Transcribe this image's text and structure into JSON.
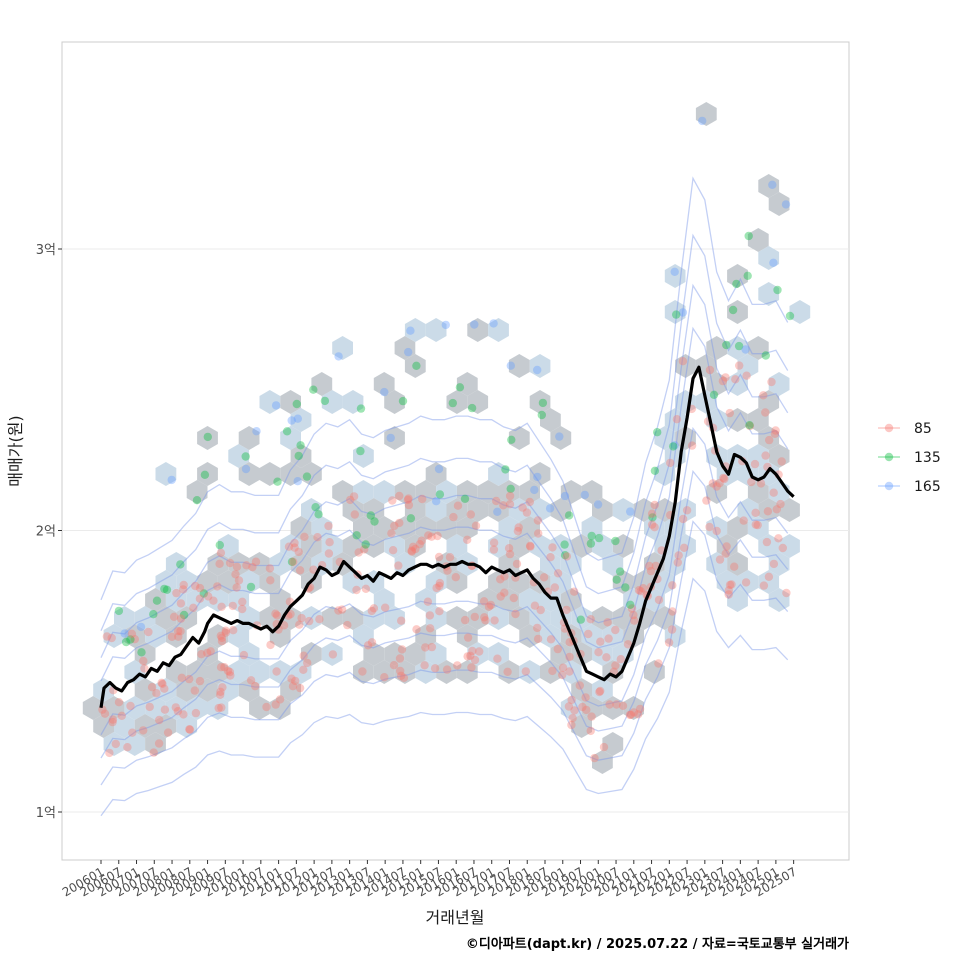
{
  "chart_data": {
    "type": "scatter",
    "xlabel": "거래년월",
    "ylabel": "매매가(원)",
    "caption": "©디아파트(dapt.kr) / 2025.07.22 / 자료=국토교통부 실거래가",
    "x_ticks": [
      "200601",
      "200607",
      "200701",
      "200707",
      "200801",
      "200807",
      "200901",
      "200907",
      "201001",
      "201007",
      "201101",
      "201107",
      "201201",
      "201207",
      "201301",
      "201307",
      "201401",
      "201407",
      "201501",
      "201507",
      "201601",
      "201607",
      "201701",
      "201707",
      "201801",
      "201807",
      "201901",
      "201907",
      "202001",
      "202007",
      "202101",
      "202107",
      "202201",
      "202207",
      "202301",
      "202307",
      "202401",
      "202407",
      "202501",
      "202507"
    ],
    "y_ticks": [
      {
        "value": 100000000,
        "label": "1억"
      },
      {
        "value": 200000000,
        "label": "2억"
      },
      {
        "value": 300000000,
        "label": "3억"
      }
    ],
    "ylim": [
      84000000,
      375000000
    ],
    "xlim": [
      "2005-08",
      "2027-01"
    ],
    "grid": true,
    "legend": {
      "position": "right",
      "items": [
        {
          "label": "85",
          "color": "#F8766D"
        },
        {
          "label": "135",
          "color": "#00BA38"
        },
        {
          "label": "165",
          "color": "#619CFF"
        }
      ]
    },
    "series": [
      {
        "name": "moving-average",
        "type": "line",
        "color": "#000000",
        "points": [
          [
            "2006-01",
            137000000
          ],
          [
            "2006-02",
            144000000
          ],
          [
            "2006-04",
            146000000
          ],
          [
            "2006-06",
            144000000
          ],
          [
            "2006-08",
            143000000
          ],
          [
            "2006-10",
            146000000
          ],
          [
            "2006-12",
            147000000
          ],
          [
            "2007-02",
            149000000
          ],
          [
            "2007-04",
            148000000
          ],
          [
            "2007-06",
            151000000
          ],
          [
            "2007-08",
            150000000
          ],
          [
            "2007-10",
            153000000
          ],
          [
            "2007-12",
            152000000
          ],
          [
            "2008-02",
            155000000
          ],
          [
            "2008-04",
            156000000
          ],
          [
            "2008-06",
            159000000
          ],
          [
            "2008-08",
            162000000
          ],
          [
            "2008-10",
            160000000
          ],
          [
            "2008-12",
            164000000
          ],
          [
            "2009-01",
            167000000
          ],
          [
            "2009-03",
            170000000
          ],
          [
            "2009-05",
            169000000
          ],
          [
            "2009-07",
            168000000
          ],
          [
            "2009-09",
            167000000
          ],
          [
            "2009-11",
            168000000
          ],
          [
            "2010-01",
            167000000
          ],
          [
            "2010-03",
            167000000
          ],
          [
            "2010-05",
            166000000
          ],
          [
            "2010-07",
            165000000
          ],
          [
            "2010-09",
            166000000
          ],
          [
            "2010-11",
            164000000
          ],
          [
            "2011-01",
            166000000
          ],
          [
            "2011-03",
            170000000
          ],
          [
            "2011-05",
            173000000
          ],
          [
            "2011-07",
            175000000
          ],
          [
            "2011-09",
            177000000
          ],
          [
            "2011-11",
            181000000
          ],
          [
            "2012-01",
            183000000
          ],
          [
            "2012-03",
            187000000
          ],
          [
            "2012-05",
            186000000
          ],
          [
            "2012-07",
            184000000
          ],
          [
            "2012-09",
            185000000
          ],
          [
            "2012-11",
            189000000
          ],
          [
            "2013-01",
            187000000
          ],
          [
            "2013-03",
            185000000
          ],
          [
            "2013-05",
            183000000
          ],
          [
            "2013-07",
            184000000
          ],
          [
            "2013-09",
            182000000
          ],
          [
            "2013-11",
            185000000
          ],
          [
            "2014-01",
            184000000
          ],
          [
            "2014-03",
            183000000
          ],
          [
            "2014-05",
            185000000
          ],
          [
            "2014-07",
            184000000
          ],
          [
            "2014-09",
            186000000
          ],
          [
            "2014-11",
            187000000
          ],
          [
            "2015-01",
            188000000
          ],
          [
            "2015-03",
            188000000
          ],
          [
            "2015-05",
            187000000
          ],
          [
            "2015-07",
            188000000
          ],
          [
            "2015-09",
            187000000
          ],
          [
            "2015-11",
            188000000
          ],
          [
            "2016-01",
            188000000
          ],
          [
            "2016-03",
            189000000
          ],
          [
            "2016-05",
            188000000
          ],
          [
            "2016-07",
            188000000
          ],
          [
            "2016-09",
            187000000
          ],
          [
            "2016-11",
            185000000
          ],
          [
            "2017-01",
            187000000
          ],
          [
            "2017-03",
            186000000
          ],
          [
            "2017-05",
            185000000
          ],
          [
            "2017-07",
            186000000
          ],
          [
            "2017-09",
            184000000
          ],
          [
            "2017-11",
            185000000
          ],
          [
            "2018-01",
            186000000
          ],
          [
            "2018-03",
            183000000
          ],
          [
            "2018-05",
            181000000
          ],
          [
            "2018-07",
            178000000
          ],
          [
            "2018-09",
            176000000
          ],
          [
            "2018-11",
            176000000
          ],
          [
            "2019-01",
            170000000
          ],
          [
            "2019-03",
            165000000
          ],
          [
            "2019-05",
            160000000
          ],
          [
            "2019-07",
            155000000
          ],
          [
            "2019-09",
            150000000
          ],
          [
            "2019-11",
            149000000
          ],
          [
            "2020-01",
            148000000
          ],
          [
            "2020-03",
            147000000
          ],
          [
            "2020-05",
            149000000
          ],
          [
            "2020-07",
            148000000
          ],
          [
            "2020-09",
            150000000
          ],
          [
            "2020-11",
            155000000
          ],
          [
            "2021-01",
            160000000
          ],
          [
            "2021-03",
            167000000
          ],
          [
            "2021-05",
            175000000
          ],
          [
            "2021-07",
            180000000
          ],
          [
            "2021-09",
            185000000
          ],
          [
            "2021-11",
            190000000
          ],
          [
            "2022-01",
            198000000
          ],
          [
            "2022-03",
            210000000
          ],
          [
            "2022-05",
            228000000
          ],
          [
            "2022-07",
            240000000
          ],
          [
            "2022-09",
            254000000
          ],
          [
            "2022-11",
            258000000
          ],
          [
            "2023-01",
            248000000
          ],
          [
            "2023-03",
            238000000
          ],
          [
            "2023-05",
            228000000
          ],
          [
            "2023-07",
            223000000
          ],
          [
            "2023-09",
            220000000
          ],
          [
            "2023-11",
            227000000
          ],
          [
            "2024-01",
            226000000
          ],
          [
            "2024-03",
            224000000
          ],
          [
            "2024-05",
            219000000
          ],
          [
            "2024-07",
            218000000
          ],
          [
            "2024-09",
            219000000
          ],
          [
            "2024-11",
            222000000
          ],
          [
            "2025-01",
            220000000
          ],
          [
            "2025-03",
            217000000
          ],
          [
            "2025-05",
            214000000
          ],
          [
            "2025-07",
            212000000
          ]
        ]
      }
    ]
  }
}
